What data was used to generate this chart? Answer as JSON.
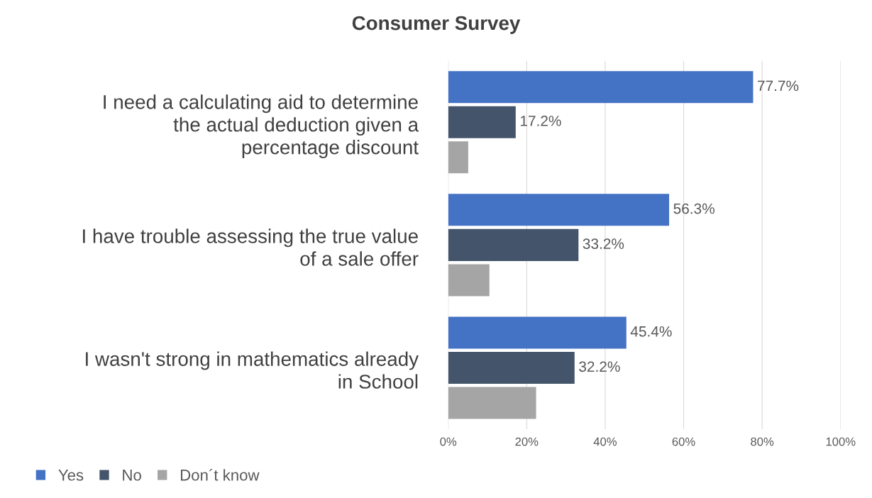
{
  "chart_data": {
    "type": "bar",
    "orientation": "horizontal",
    "title": "Consumer Survey",
    "categories": [
      "I need a calculating aid to determine\nthe actual deduction given a\npercentage discount",
      "I have trouble assessing the true value\nof a sale offer",
      "I wasn't strong in mathematics already\nin School"
    ],
    "series": [
      {
        "name": "Yes",
        "color": "#4472c4",
        "values": [
          77.7,
          56.3,
          45.4
        ],
        "value_labels": [
          "77.7%",
          "56.3%",
          "45.4%"
        ]
      },
      {
        "name": "No",
        "color": "#44546a",
        "values": [
          17.2,
          33.2,
          32.2
        ],
        "value_labels": [
          "17.2%",
          "33.2%",
          "32.2%"
        ]
      },
      {
        "name": "Don´t know",
        "color": "#a5a5a5",
        "values": [
          5.1,
          10.5,
          22.4
        ]
      }
    ],
    "xlim": [
      0,
      100
    ],
    "xticks": [
      {
        "value": 0,
        "label": "0%"
      },
      {
        "value": 20,
        "label": "20%"
      },
      {
        "value": 40,
        "label": "40%"
      },
      {
        "value": 60,
        "label": "60%"
      },
      {
        "value": 80,
        "label": "80%"
      },
      {
        "value": 100,
        "label": "100%"
      }
    ],
    "grid": "x",
    "legend": "bottom left"
  }
}
